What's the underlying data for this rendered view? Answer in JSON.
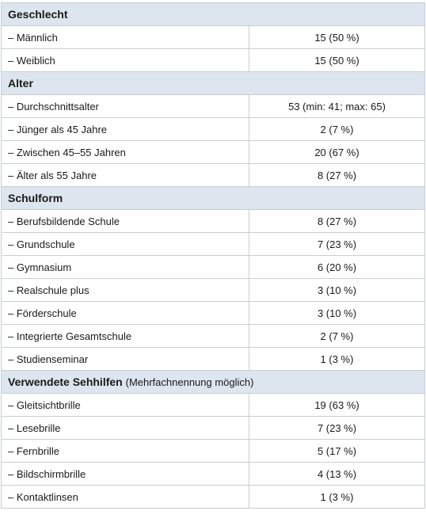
{
  "sections": [
    {
      "title": "Geschlecht",
      "note": "",
      "rows": [
        {
          "label": "– Männlich",
          "value": "15 (50 %)"
        },
        {
          "label": "– Weiblich",
          "value": "15 (50 %)"
        }
      ]
    },
    {
      "title": "Alter",
      "note": "",
      "rows": [
        {
          "label": "– Durchschnittsalter",
          "value": "53 (min: 41; max: 65)"
        },
        {
          "label": "– Jünger als 45 Jahre",
          "value": "2 (7 %)"
        },
        {
          "label": "– Zwischen 45–55 Jahren",
          "value": "20 (67 %)"
        },
        {
          "label": "– Älter als 55 Jahre",
          "value": "8 (27 %)"
        }
      ]
    },
    {
      "title": "Schulform",
      "note": "",
      "rows": [
        {
          "label": "– Berufsbildende Schule",
          "value": "8 (27 %)"
        },
        {
          "label": "– Grundschule",
          "value": "7 (23 %)"
        },
        {
          "label": "– Gymnasium",
          "value": "6 (20 %)"
        },
        {
          "label": "– Realschule plus",
          "value": "3 (10 %)"
        },
        {
          "label": "– Förderschule",
          "value": "3 (10 %)"
        },
        {
          "label": "– Integrierte Gesamtschule",
          "value": "2 (7 %)"
        },
        {
          "label": "– Studienseminar",
          "value": "1 (3 %)"
        }
      ]
    },
    {
      "title": "Verwendete Sehhilfen",
      "note": "(Mehrfachnennung möglich)",
      "rows": [
        {
          "label": "– Gleitsichtbrille",
          "value": "19 (63 %)"
        },
        {
          "label": "– Lesebrille",
          "value": "7 (23 %)"
        },
        {
          "label": "– Fernbrille",
          "value": "5 (17 %)"
        },
        {
          "label": "– Bildschirmbrille",
          "value": "4 (13 %)"
        },
        {
          "label": "– Kontaktlinsen",
          "value": "1 (3 %)"
        }
      ]
    }
  ]
}
